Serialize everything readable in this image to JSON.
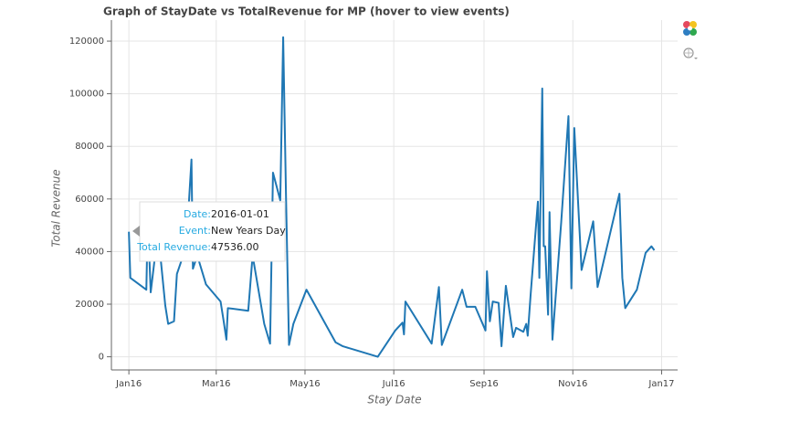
{
  "chart_data": {
    "type": "line",
    "title": "Graph of StayDate vs TotalRevenue for MP (hover to view events)",
    "x_label": "Stay Date",
    "y_label": "Total Revenue",
    "color": "#1f77b4",
    "grid": true,
    "x": [
      "2016-01-01",
      "2016-01-02",
      "2016-01-13",
      "2016-01-14",
      "2016-01-16",
      "2016-01-19",
      "2016-01-22",
      "2016-01-26",
      "2016-01-28",
      "2016-02-01",
      "2016-02-03",
      "2016-02-07",
      "2016-02-10",
      "2016-02-13",
      "2016-02-14",
      "2016-02-17",
      "2016-02-23",
      "2016-03-04",
      "2016-03-06",
      "2016-03-08",
      "2016-03-09",
      "2016-03-23",
      "2016-03-26",
      "2016-04-03",
      "2016-04-07",
      "2016-04-09",
      "2016-04-14",
      "2016-04-16",
      "2016-04-18",
      "2016-04-20",
      "2016-04-23",
      "2016-05-02",
      "2016-05-22",
      "2016-05-27",
      "2016-06-20",
      "2016-07-02",
      "2016-07-07",
      "2016-07-08",
      "2016-07-09",
      "2016-07-27",
      "2016-08-01",
      "2016-08-03",
      "2016-08-17",
      "2016-08-20",
      "2016-08-26",
      "2016-09-02",
      "2016-09-03",
      "2016-09-05",
      "2016-09-07",
      "2016-09-11",
      "2016-09-13",
      "2016-09-16",
      "2016-09-21",
      "2016-09-23",
      "2016-09-28",
      "2016-09-30",
      "2016-10-01",
      "2016-10-03",
      "2016-10-08",
      "2016-10-09",
      "2016-10-11",
      "2016-10-12",
      "2016-10-13",
      "2016-10-15",
      "2016-10-16",
      "2016-10-18",
      "2016-10-24",
      "2016-10-29",
      "2016-10-31",
      "2016-11-02",
      "2016-11-07",
      "2016-11-15",
      "2016-11-18",
      "2016-12-03",
      "2016-12-05",
      "2016-12-07",
      "2016-12-15",
      "2016-12-21",
      "2016-12-25",
      "2016-12-27"
    ],
    "values": [
      47536,
      30000,
      25500,
      53000,
      24500,
      38500,
      42000,
      19500,
      12500,
      13500,
      31500,
      38000,
      47000,
      75000,
      33500,
      38500,
      27500,
      21000,
      14000,
      6500,
      18500,
      17500,
      38500,
      12500,
      5000,
      70000,
      59500,
      121500,
      59500,
      4500,
      12500,
      25500,
      5500,
      4000,
      0,
      10000,
      13000,
      8500,
      21000,
      5000,
      26500,
      4500,
      25500,
      19000,
      19000,
      10000,
      32500,
      13500,
      21000,
      20500,
      4000,
      27000,
      7500,
      11000,
      9500,
      12500,
      8000,
      23500,
      59000,
      30000,
      102000,
      42000,
      42000,
      16000,
      55000,
      6500,
      51000,
      91500,
      26000,
      87000,
      33000,
      51500,
      26500,
      62000,
      30000,
      18500,
      25500,
      39500,
      42000,
      40500
    ],
    "xlim": [
      "2015-12-20",
      "2017-01-12"
    ],
    "xticks": [
      {
        "value": "2016-01-01",
        "label": "Jan16"
      },
      {
        "value": "2016-03-01",
        "label": "Mar16"
      },
      {
        "value": "2016-05-01",
        "label": "May16"
      },
      {
        "value": "2016-07-01",
        "label": "Jul16"
      },
      {
        "value": "2016-09-01",
        "label": "Sep16"
      },
      {
        "value": "2016-11-01",
        "label": "Nov16"
      },
      {
        "value": "2017-01-01",
        "label": "Jan17"
      }
    ],
    "ylim": [
      -5000,
      128000
    ],
    "yticks": [
      0,
      20000,
      40000,
      60000,
      80000,
      100000,
      120000
    ],
    "tooltip": [
      {
        "label": "Date:",
        "value": "2016-01-01"
      },
      {
        "label": "Event:",
        "value": "New Years Day"
      },
      {
        "label": "Total Revenue:",
        "value": "47536.00"
      }
    ]
  }
}
